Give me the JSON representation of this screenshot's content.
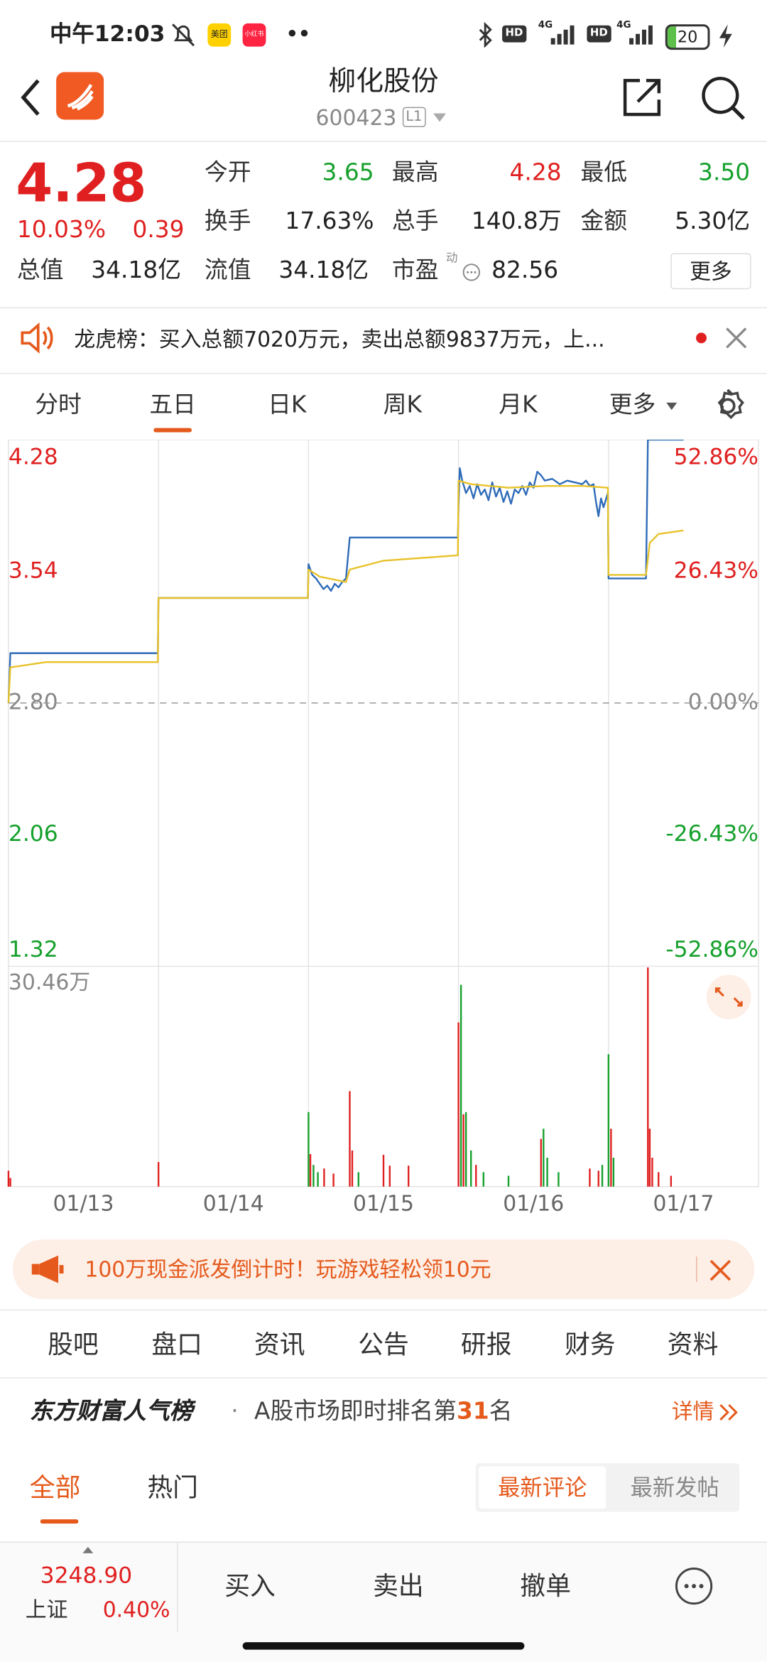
{
  "status_bar": {
    "time": "中午12:03",
    "apps": [
      "美团",
      "小红书"
    ],
    "signal": [
      "HD",
      "4G",
      "HD",
      "4G"
    ],
    "battery": "20"
  },
  "header": {
    "title": "柳化股份",
    "code": "600423",
    "level": "L1"
  },
  "quote": {
    "price": "4.28",
    "change_pct": "10.03%",
    "change": "0.39",
    "stats": [
      {
        "label": "今开",
        "value": "3.65"
      },
      {
        "label": "最高",
        "value": "4.28"
      },
      {
        "label": "最低",
        "value": "3.50"
      },
      {
        "label": "换手",
        "value": "17.63%"
      },
      {
        "label": "总手",
        "value": "140.8万"
      },
      {
        "label": "金额",
        "value": "5.30亿"
      },
      {
        "label": "总值",
        "value": "34.18亿"
      },
      {
        "label": "流值",
        "value": "34.18亿"
      },
      {
        "label": "市盈",
        "tag": "动",
        "value": "82.56"
      }
    ],
    "more": "更多"
  },
  "notice": "龙虎榜：买入总额7020万元，卖出总额9837万元，上...",
  "chart_tabs": [
    "分时",
    "五日",
    "日K",
    "周K",
    "月K",
    "更多"
  ],
  "chart_data": [
    {
      "type": "line",
      "xlim": [
        0,
        1200
      ],
      "xticks": [
        {
          "value": 120,
          "label": "01/13"
        },
        {
          "value": 360,
          "label": "01/14"
        },
        {
          "value": 600,
          "label": "01/15"
        },
        {
          "value": 840,
          "label": "01/16"
        },
        {
          "value": 1080,
          "label": "01/17"
        }
      ],
      "ylim": [
        1.32,
        4.28
      ],
      "yticks": [
        4.28,
        3.54,
        {
          "value": 2.8,
          "label": "2.80"
        },
        2.06,
        1.32
      ],
      "y2lim": [
        -52.86,
        52.86
      ],
      "y2ticks": [
        {
          "value": 52.86,
          "label": "52.86%"
        },
        {
          "value": 26.43,
          "label": "26.43%"
        },
        {
          "value": 0,
          "label": "0.00%"
        },
        {
          "value": -26.43,
          "label": "-26.43%"
        },
        {
          "value": -52.86,
          "label": "-52.86%"
        }
      ],
      "series": [
        {
          "color": "#2e6bb8",
          "x": [
            0,
            3,
            60,
            120,
            180,
            239,
            240,
            300,
            360,
            420,
            479,
            480,
            486,
            492,
            498,
            504,
            510,
            516,
            522,
            528,
            534,
            540,
            546,
            600,
            660,
            719,
            720,
            722,
            726,
            732,
            738,
            744,
            750,
            756,
            762,
            768,
            774,
            780,
            786,
            792,
            798,
            804,
            810,
            816,
            822,
            828,
            834,
            840,
            846,
            852,
            858,
            870,
            882,
            894,
            906,
            918,
            924,
            930,
            936,
            940,
            944,
            948,
            952,
            959,
            960,
            1020,
            1023,
            1080
          ],
          "values": [
            2.8,
            3.08,
            3.08,
            3.08,
            3.08,
            3.08,
            3.39,
            3.39,
            3.39,
            3.39,
            3.39,
            3.58,
            3.52,
            3.5,
            3.47,
            3.44,
            3.46,
            3.43,
            3.47,
            3.45,
            3.48,
            3.5,
            3.73,
            3.73,
            3.73,
            3.73,
            3.9,
            4.12,
            4.05,
            3.98,
            4.02,
            3.95,
            4.03,
            3.97,
            4.0,
            3.94,
            4.04,
            3.96,
            4.01,
            3.93,
            3.99,
            3.92,
            4.0,
            3.98,
            4.02,
            3.97,
            4.04,
            4.01,
            4.1,
            4.08,
            4.05,
            4.06,
            4.03,
            4.05,
            4.04,
            4.03,
            4.05,
            4.02,
            4.03,
            3.93,
            3.85,
            3.95,
            3.9,
            3.98,
            3.5,
            3.5,
            4.28,
            4.28
          ]
        },
        {
          "color": "#e8c22a",
          "x": [
            0,
            3,
            60,
            239,
            240,
            479,
            480,
            498,
            540,
            546,
            600,
            719,
            720,
            740,
            800,
            860,
            920,
            959,
            960,
            1020,
            1026,
            1040,
            1080
          ],
          "values": [
            2.8,
            3.0,
            3.03,
            3.03,
            3.39,
            3.39,
            3.55,
            3.51,
            3.48,
            3.55,
            3.6,
            3.63,
            4.05,
            4.03,
            4.01,
            4.02,
            4.02,
            4.01,
            3.52,
            3.52,
            3.7,
            3.75,
            3.77
          ]
        }
      ]
    },
    {
      "type": "bar",
      "xlim": [
        0,
        1200
      ],
      "ylim": [
        0,
        30.46
      ],
      "yticks": [
        {
          "value": 30.46,
          "label": "30.46万"
        }
      ],
      "x": [
        0,
        3,
        240,
        480,
        483,
        488,
        495,
        505,
        520,
        546,
        550,
        560,
        600,
        610,
        640,
        720,
        724,
        728,
        732,
        740,
        748,
        760,
        800,
        852,
        856,
        862,
        880,
        930,
        944,
        950,
        960,
        964,
        968,
        1023,
        1026,
        1030,
        1040,
        1060
      ],
      "values": [
        2.2,
        1.2,
        3.4,
        10.3,
        4.5,
        3.0,
        2.0,
        2.5,
        1.8,
        13.2,
        5.0,
        2.0,
        4.4,
        2.9,
        2.9,
        22.7,
        27.9,
        10.0,
        10.3,
        5.0,
        3.0,
        2.0,
        1.5,
        6.6,
        8.0,
        4.0,
        2.0,
        2.5,
        2.2,
        3.0,
        18.3,
        8.0,
        4.0,
        30.3,
        8.0,
        4.0,
        2.0,
        1.5
      ],
      "colors": [
        "#e02020",
        "#e02020",
        "#e02020",
        "#16a02c",
        "#e02020",
        "#16a02c",
        "#16a02c",
        "#e02020",
        "#e02020",
        "#e02020",
        "#e02020",
        "#16a02c",
        "#e02020",
        "#e02020",
        "#e02020",
        "#e02020",
        "#16a02c",
        "#e02020",
        "#16a02c",
        "#16a02c",
        "#e02020",
        "#16a02c",
        "#16a02c",
        "#e02020",
        "#16a02c",
        "#16a02c",
        "#16a02c",
        "#e02020",
        "#e02020",
        "#16a02c",
        "#16a02c",
        "#e02020",
        "#16a02c",
        "#e02020",
        "#e02020",
        "#e02020",
        "#e02020",
        "#e02020"
      ]
    }
  ],
  "banner": "100万现金派发倒计时！玩游戏轻松领10元",
  "section_tabs": [
    "股吧",
    "盘口",
    "资讯",
    "公告",
    "研报",
    "财务",
    "资料"
  ],
  "popularity": {
    "brand": "东方财富人气榜",
    "dot": "·",
    "text": "A股市场即时排名第",
    "rank": "31",
    "suffix": "名",
    "detail": "详情"
  },
  "filters": {
    "tabs": [
      "全部",
      "热门"
    ],
    "sort": [
      "最新评论",
      "最新发帖"
    ]
  },
  "bottom_bar": {
    "index_value": "3248.90",
    "index_name": "上证",
    "index_change": "0.40%",
    "actions": [
      "买入",
      "卖出",
      "撤单"
    ]
  }
}
